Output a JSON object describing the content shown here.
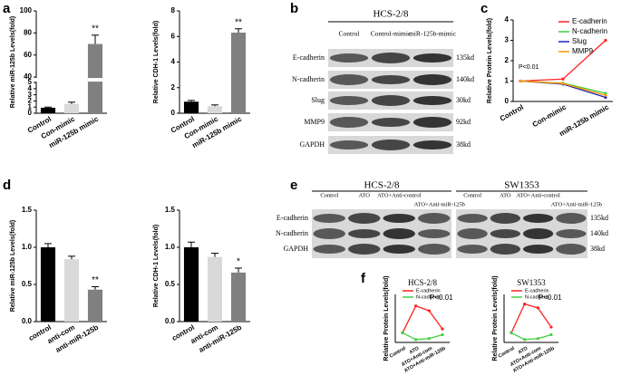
{
  "panel_labels": [
    "a",
    "b",
    "c",
    "d",
    "e",
    "f"
  ],
  "chart_data": [
    {
      "type": "bar",
      "ylabel": "Relative miR-125b Levels(fold)",
      "categories": [
        "Control",
        "Con-mimic",
        "miR-125b mimic"
      ],
      "values": [
        0.9,
        1.5,
        70
      ],
      "errors": [
        0.1,
        0.3,
        8
      ],
      "colors": [
        "#000000",
        "#d9d9d9",
        "#808080"
      ],
      "significance": [
        null,
        null,
        "**"
      ],
      "ylim": [
        0,
        100
      ],
      "axis_break": [
        5,
        40
      ],
      "yticks": [
        0,
        1,
        2,
        3,
        4,
        5,
        40,
        60,
        80,
        100
      ]
    },
    {
      "type": "bar",
      "ylabel": "Relative CDH-1 Levels(fold)",
      "categories": [
        "Control",
        "Con-mimic",
        "miR-125b mimic"
      ],
      "values": [
        0.9,
        0.55,
        6.3
      ],
      "errors": [
        0.1,
        0.1,
        0.3
      ],
      "colors": [
        "#000000",
        "#d9d9d9",
        "#808080"
      ],
      "significance": [
        null,
        null,
        "**"
      ],
      "ylim": [
        0,
        8
      ],
      "yticks": [
        0,
        2,
        4,
        6,
        8
      ]
    },
    {
      "type": "line",
      "ylabel": "Relative Protein Levels(fold)",
      "categories": [
        "Control",
        "Con-mimic",
        "miR-125b mimic"
      ],
      "series": [
        {
          "name": "E-cadherin",
          "color": "#ff2020",
          "values": [
            1,
            1.1,
            3.0
          ]
        },
        {
          "name": "N-cadherin",
          "color": "#40d040",
          "values": [
            1,
            0.9,
            0.4
          ]
        },
        {
          "name": "Slug",
          "color": "#2020c0",
          "values": [
            1,
            0.85,
            0.2
          ]
        },
        {
          "name": "MMP9",
          "color": "#ff9900",
          "values": [
            1,
            0.88,
            0.3
          ]
        }
      ],
      "annotation": "P<0.01",
      "ylim": [
        0,
        4
      ],
      "yticks": [
        0,
        1,
        2,
        3,
        4
      ],
      "legend": "upper right"
    },
    {
      "type": "bar",
      "ylabel": "Relative miR-125b Levels(fold)",
      "categories": [
        "control",
        "anti-com",
        "anti-miR-125b"
      ],
      "values": [
        1.0,
        0.84,
        0.43
      ],
      "errors": [
        0.05,
        0.04,
        0.04
      ],
      "colors": [
        "#000000",
        "#d9d9d9",
        "#808080"
      ],
      "significance": [
        null,
        null,
        "**"
      ],
      "ylim": [
        0,
        1.5
      ],
      "yticks": [
        {
          "value": 0,
          "label": "0.0"
        },
        0.5,
        {
          "value": 1,
          "label": "1.0"
        },
        1.5
      ]
    },
    {
      "type": "bar",
      "ylabel": "Relative CDH-1 Levels(fold)",
      "categories": [
        "control",
        "anti-com",
        "anti-miR-125b"
      ],
      "values": [
        1.0,
        0.87,
        0.66
      ],
      "errors": [
        0.07,
        0.05,
        0.06
      ],
      "colors": [
        "#000000",
        "#d9d9d9",
        "#808080"
      ],
      "significance": [
        null,
        null,
        "*"
      ],
      "ylim": [
        0,
        1.5
      ],
      "yticks": [
        {
          "value": 0,
          "label": "0.0"
        },
        0.5,
        {
          "value": 1,
          "label": "1.0"
        },
        1.5
      ]
    },
    {
      "type": "line",
      "title": "HCS-2/8",
      "ylabel": "Relative Protein Levels(fold)",
      "categories": [
        "Control",
        "ATO",
        "ATO+Anti-com",
        "ATO+Anti-miR-125b"
      ],
      "series": [
        {
          "name": "E-cadherin",
          "color": "#ff2020",
          "values": [
            1,
            3.8,
            3.3,
            1.4
          ]
        },
        {
          "name": "N-cadherin",
          "color": "#40d040",
          "values": [
            1,
            0.3,
            0.4,
            0.8
          ]
        }
      ],
      "annotation": "P<0.01",
      "ylim": [
        0,
        5
      ],
      "legend": "upper left"
    },
    {
      "type": "line",
      "title": "SW1353",
      "ylabel": "Relative Protein Levels(fold)",
      "categories": [
        "Control",
        "ATO",
        "ATO+Anti-com",
        "ATO+Anti-miR-125b"
      ],
      "series": [
        {
          "name": "E-cadherin",
          "color": "#ff2020",
          "values": [
            1,
            4.0,
            3.6,
            1.6
          ]
        },
        {
          "name": "N-cadherin",
          "color": "#40d040",
          "values": [
            1,
            0.3,
            0.4,
            0.8
          ]
        }
      ],
      "annotation": "P<0.01",
      "ylim": [
        0,
        5
      ],
      "legend": "upper left"
    }
  ],
  "blots": {
    "b": {
      "groups": [
        "HCS-2/8"
      ],
      "columns": [
        "Control",
        "Control-mimic",
        "miR-125b-mimic"
      ],
      "rows": [
        "E-cadherin",
        "N-cadherin",
        "Slug",
        "MMP9",
        "GAPDH"
      ],
      "sizes": [
        "135kd",
        "140kd",
        "30kd",
        "92kd",
        "38kd"
      ]
    },
    "e": {
      "groups": [
        "HCS-2/8",
        "SW1353"
      ],
      "columns": [
        "Control",
        "ATO",
        "ATO+Anti-control",
        "ATO+Anti-miR-125b"
      ],
      "rows": [
        "E-cadherin",
        "N-cadherin",
        "GAPDH"
      ],
      "sizes": [
        "135kd",
        "140kd",
        "38kd"
      ]
    }
  }
}
